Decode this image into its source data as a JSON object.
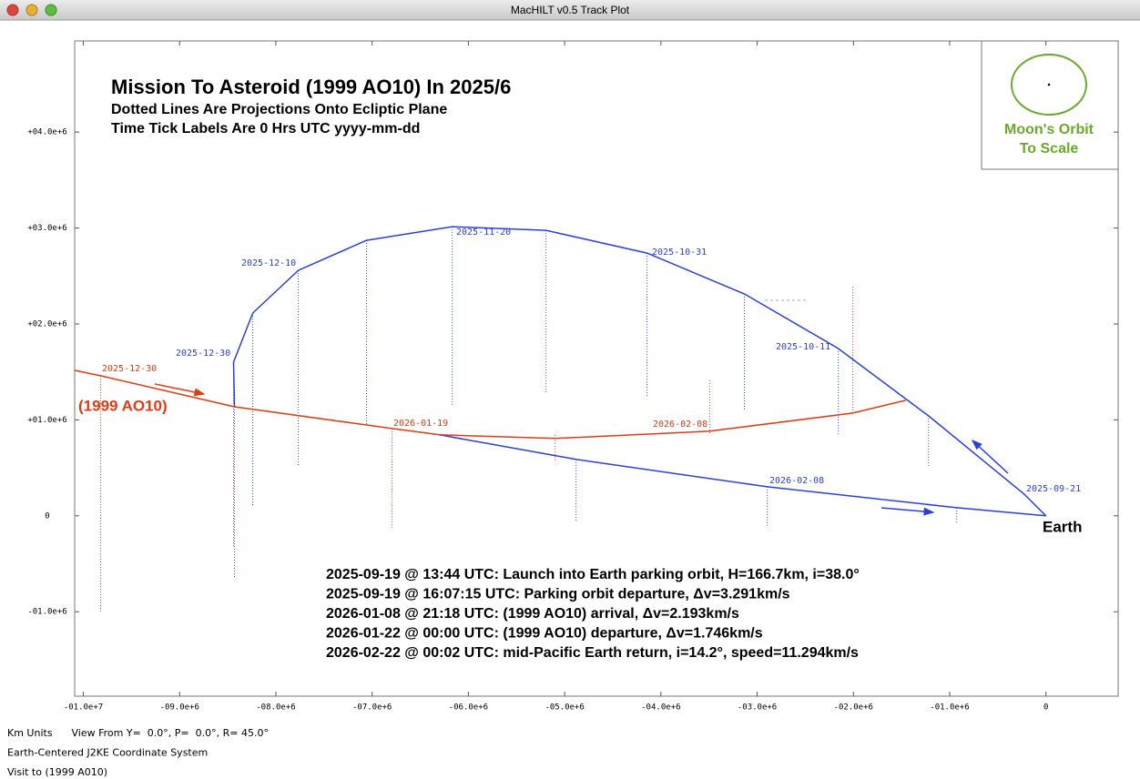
{
  "window": {
    "title": "MacHILT v0.5 Track Plot"
  },
  "chart_data": {
    "type": "line",
    "title": "Mission To Asteroid (1999 AO10) In 2025/6",
    "subtitle": [
      "Dotted Lines Are Projections Onto Ecliptic Plane",
      "Time Tick Labels Are 0 Hrs UTC yyyy-mm-dd"
    ],
    "xlim": [
      -10090000,
      750000
    ],
    "ylim": [
      -1880000,
      4950000
    ],
    "xticks": [
      {
        "value": -10000000,
        "label": "-01.0e+7"
      },
      {
        "value": -9000000,
        "label": "-09.0e+6"
      },
      {
        "value": -8000000,
        "label": "-08.0e+6"
      },
      {
        "value": -7000000,
        "label": "-07.0e+6"
      },
      {
        "value": -6000000,
        "label": "-06.0e+6"
      },
      {
        "value": -5000000,
        "label": "-05.0e+6"
      },
      {
        "value": -4000000,
        "label": "-04.0e+6"
      },
      {
        "value": -3000000,
        "label": "-03.0e+6"
      },
      {
        "value": -2000000,
        "label": "-02.0e+6"
      },
      {
        "value": -1000000,
        "label": "-01.0e+6"
      },
      0
    ],
    "yticks": [
      {
        "value": -1000000,
        "label": "-01.0e+6"
      },
      0,
      {
        "value": 1000000,
        "label": "+01.0e+6"
      },
      {
        "value": 2000000,
        "label": "+02.0e+6"
      },
      {
        "value": 3000000,
        "label": "+03.0e+6"
      },
      {
        "value": 4000000,
        "label": "+04.0e+6"
      }
    ],
    "series": [
      {
        "color": "#2a3fe0",
        "x": [
          0,
          -227000,
          -1220000,
          -2157000,
          -3132000,
          -4144000,
          -5194000,
          -6168000,
          -7058000,
          -7767000,
          -8240000,
          -8439000,
          -8430000
        ],
        "y": [
          0,
          227000,
          1043000,
          1744000,
          2313000,
          2739000,
          2976000,
          3014000,
          2872000,
          2559000,
          2114000,
          1602000,
          1137000
        ]
      },
      {
        "color": "#2a3fe0",
        "x": [
          -6301000,
          -4882000,
          -2895000,
          -927000,
          0
        ],
        "y": [
          844000,
          588000,
          303000,
          85000,
          0
        ]
      },
      {
        "color": "#e23a12",
        "x": [
          -10095000,
          -9820000,
          -8430000,
          -6793000,
          -6301000,
          -5099000,
          -3491000,
          -2006000,
          -1457000
        ],
        "y": [
          1517000,
          1460000,
          1137000,
          910000,
          844000,
          806000,
          882000,
          1071000,
          1204000
        ]
      }
    ],
    "projections": [
      {
        "color": "#2a3fe0",
        "segments": [
          [
            -1220000,
            1043000,
            521000
          ],
          [
            -2157000,
            1744000,
            853000
          ],
          [
            -3132000,
            2313000,
            1090000
          ],
          [
            -4144000,
            2739000,
            1232000
          ],
          [
            -5194000,
            2976000,
            1280000
          ],
          [
            -6168000,
            3014000,
            1156000
          ],
          [
            -7058000,
            2872000,
            957000
          ],
          [
            -7767000,
            2559000,
            521000
          ],
          [
            -8240000,
            2114000,
            95000
          ],
          [
            -8439000,
            1602000,
            -313000
          ],
          [
            -4882000,
            588000,
            -57000
          ],
          [
            -2895000,
            303000,
            -104000
          ],
          [
            -927000,
            85000,
            -76000
          ]
        ]
      },
      {
        "color": "#e23a12",
        "segments": [
          [
            -9820000,
            1460000,
            -1005000
          ],
          [
            -8430000,
            1137000,
            -645000
          ],
          [
            -6793000,
            910000,
            -123000
          ],
          [
            -5099000,
            844000,
            559000
          ],
          [
            -3491000,
            1412000,
            844000
          ],
          [
            -2006000,
            2389000,
            1071000
          ]
        ]
      }
    ],
    "time_labels": [
      {
        "text": "2025-09-21",
        "color": "#2a3fe0"
      },
      {
        "text": "2025-10-11",
        "color": "#2a3fe0"
      },
      {
        "text": "2025-10-31",
        "color": "#2a3fe0"
      },
      {
        "text": "2025-11-20",
        "color": "#2a3fe0"
      },
      {
        "text": "2025-12-10",
        "color": "#2a3fe0"
      },
      {
        "text": "2025-12-30",
        "color": "#2a3fe0"
      },
      {
        "text": "2025-12-30",
        "color": "#e23a12"
      },
      {
        "text": "2026-01-19",
        "color": "#e23a12"
      },
      {
        "text": "2026-02-08",
        "color": "#e23a12"
      },
      {
        "text": "2026-02-08",
        "color": "#2a3fe0"
      }
    ],
    "object_label": "(1999 AO10)",
    "origin_label": "Earth",
    "inset": {
      "lines": [
        "Moon's Orbit",
        "To Scale"
      ],
      "color": "#6aaa2a"
    },
    "events": [
      "2025-09-19 @ 13:44 UTC: Launch into Earth parking orbit, H=166.7km, i=38.0°",
      "2025-09-19 @ 16:07:15 UTC: Parking orbit departure, Δv=3.291km/s",
      "2026-01-08 @ 21:18 UTC: (1999 AO10) arrival, Δv=2.193km/s",
      "2026-01-22 @ 00:00 UTC: (1999 AO10) departure, Δv=1.746km/s",
      "2026-02-22 @ 00:02 UTC: mid-Pacific Earth return, i=14.2°, speed=11.294km/s"
    ]
  },
  "footer": {
    "lines": [
      "Km Units      View From Y=  0.0°, P=  0.0°, R= 45.0°",
      "Earth-Centered J2KE Coordinate System",
      "Visit to (1999 A010)"
    ]
  }
}
